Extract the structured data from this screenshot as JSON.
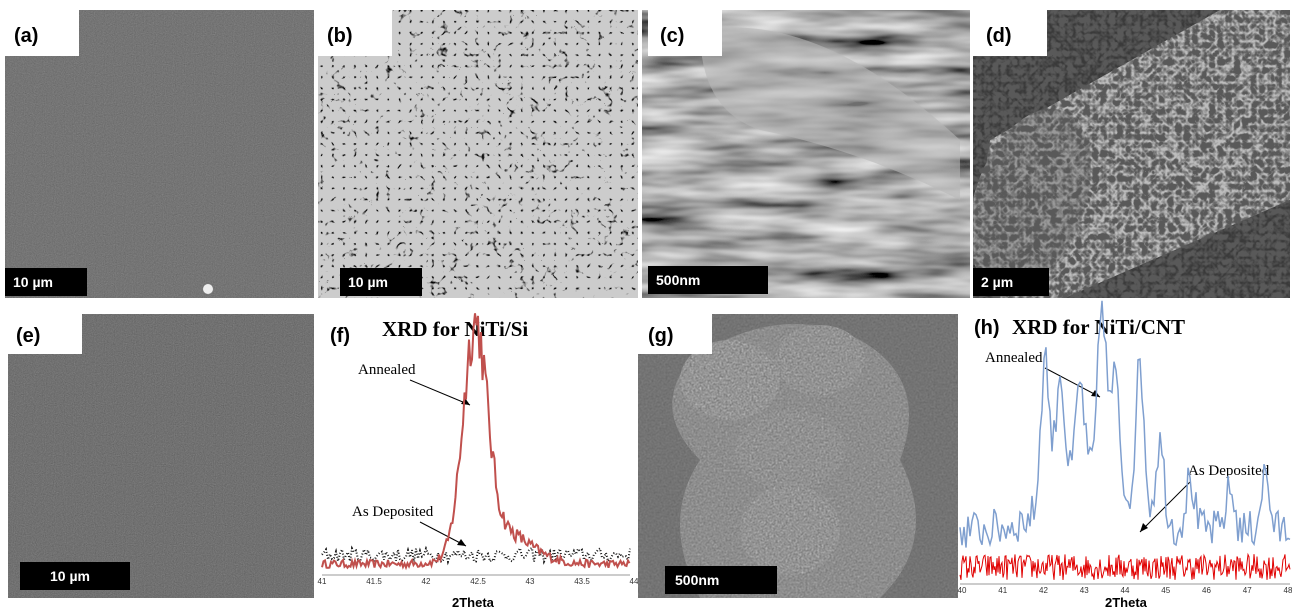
{
  "panels": [
    {
      "label": "(a)",
      "scale": "10 µm"
    },
    {
      "label": "(b)",
      "scale": "10 µm"
    },
    {
      "label": "(c)",
      "scale": "500nm"
    },
    {
      "label": "(d)",
      "scale": "2 µm"
    },
    {
      "label": "(e)",
      "scale": "10 µm"
    },
    {
      "label": "(f)",
      "title": "XRD for NiTi/Si",
      "annotations": [
        "Annealed",
        "As Deposited"
      ],
      "x_label": "2Theta",
      "x_ticks": [
        "41",
        "41.5",
        "42",
        "42.5",
        "43",
        "43.5",
        "44"
      ]
    },
    {
      "label": "(g)",
      "scale": "500nm"
    },
    {
      "label": "(h)",
      "title": "XRD for NiTi/CNT",
      "annotations": [
        "Annealed",
        "As Deposited"
      ],
      "x_label": "2Theta",
      "x_ticks": [
        "40",
        "41",
        "42",
        "43",
        "44",
        "45",
        "46",
        "47",
        "48"
      ]
    }
  ]
}
